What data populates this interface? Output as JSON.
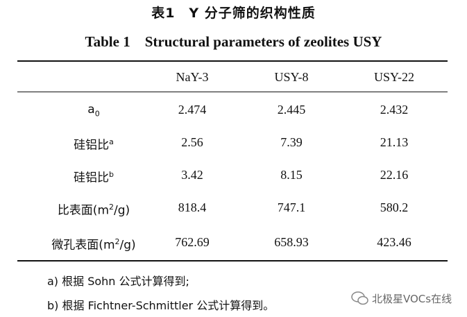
{
  "header": {
    "title_cn": "表1　Y 分子筛的织构性质",
    "title_en": "Table 1　Structural parameters of zeolites USY"
  },
  "table": {
    "columns": [
      "NaY-3",
      "USY-8",
      "USY-22"
    ],
    "rows": [
      {
        "label": {
          "base": "a",
          "sub": "0"
        },
        "values": [
          "2.474",
          "2.445",
          "2.432"
        ]
      },
      {
        "label": {
          "base": "硅铝比",
          "sup": "a"
        },
        "values": [
          "2.56",
          "7.39",
          "21.13"
        ]
      },
      {
        "label": {
          "base": "硅铝比",
          "sup": "b"
        },
        "values": [
          "3.42",
          "8.15",
          "22.16"
        ]
      },
      {
        "label": {
          "base": "比表面(m",
          "sup": "2",
          "tail": "/g)"
        },
        "values": [
          "818.4",
          "747.1",
          "580.2"
        ]
      },
      {
        "label": {
          "base": "微孔表面(m",
          "sup": "2",
          "tail": "/g)"
        },
        "values": [
          "762.69",
          "658.93",
          "423.46"
        ]
      }
    ]
  },
  "footnotes": [
    "a) 根据 Sohn 公式计算得到;",
    "b) 根据 Fichtner-Schmittler 公式计算得到。"
  ],
  "watermark": "北极星VOCs在线"
}
